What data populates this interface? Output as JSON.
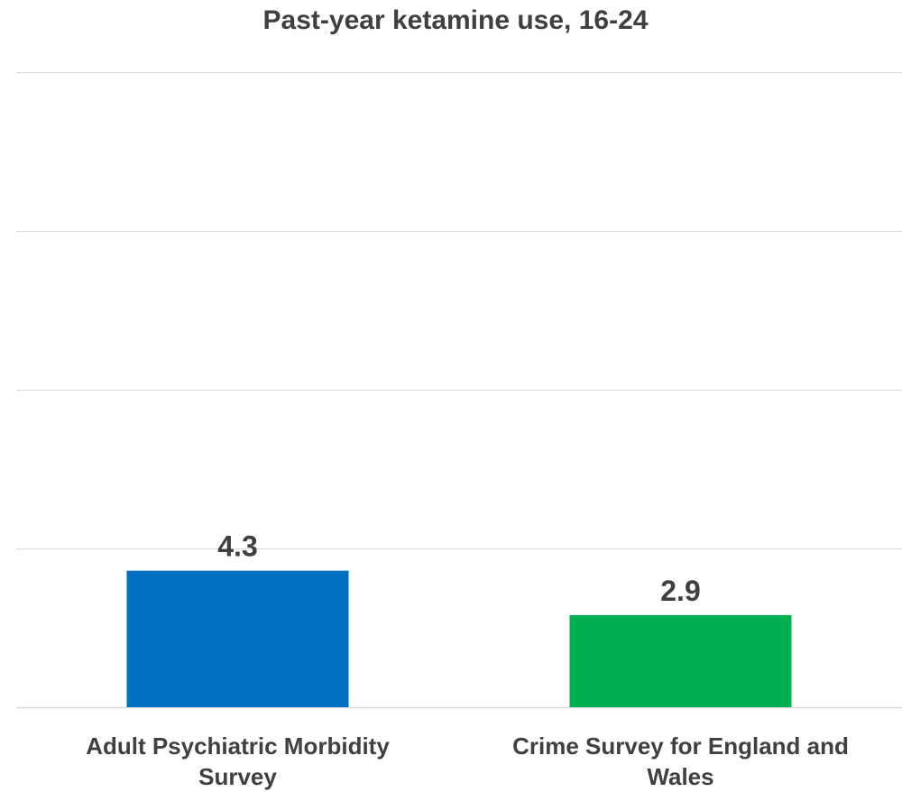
{
  "chart_data": {
    "type": "bar",
    "title": "Past-year ketamine use, 16-24",
    "xlabel": "",
    "ylabel": "",
    "categories": [
      "Adult Psychiatric Morbidity Survey",
      "Crime Survey for England and Wales"
    ],
    "values": [
      4.3,
      2.9
    ],
    "data_labels": [
      "4.3",
      "2.9"
    ],
    "bar_colors": [
      "#0070C0",
      "#00B050"
    ],
    "ylim": [
      0,
      20
    ],
    "gridlines": true,
    "legend": "none"
  }
}
